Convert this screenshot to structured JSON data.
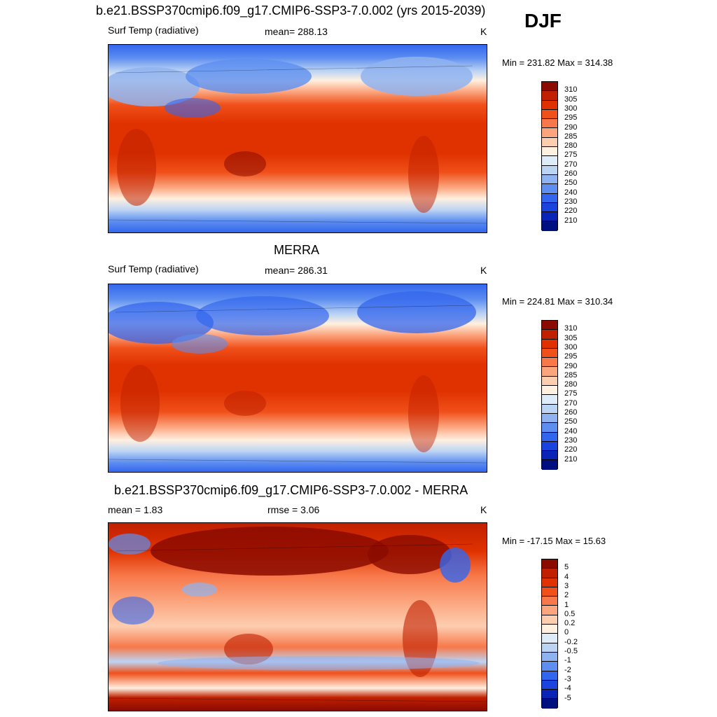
{
  "season": "DJF",
  "units": "K",
  "panels": [
    {
      "title": "b.e21.BSSP370cmip6.f09_g17.CMIP6-SSP3-7.0.002 (yrs 2015-2039)",
      "left_label": "Surf Temp (radiative)",
      "center_label": "mean= 288.13",
      "right_label": "K",
      "minmax": "Min = 231.82 Max = 314.38"
    },
    {
      "title": "MERRA",
      "left_label": "Surf Temp (radiative)",
      "center_label": "mean= 286.31",
      "right_label": "K",
      "minmax": "Min = 224.81 Max = 310.34"
    },
    {
      "title": "b.e21.BSSP370cmip6.f09_g17.CMIP6-SSP3-7.0.002 - MERRA",
      "left_label": "mean =   1.83",
      "center_label": "rmse =   3.06",
      "right_label": "K",
      "minmax": "Min = -17.15 Max =  15.63"
    }
  ],
  "colorbar_abs": {
    "labels": [
      "310",
      "305",
      "300",
      "295",
      "290",
      "285",
      "280",
      "275",
      "270",
      "260",
      "250",
      "240",
      "230",
      "220",
      "210"
    ],
    "colors": [
      "#8b0b00",
      "#c02000",
      "#e03200",
      "#f0501a",
      "#f7784a",
      "#fba57e",
      "#fdcdb0",
      "#fff0e0",
      "#deebf8",
      "#bcd4f4",
      "#8fb3f0",
      "#5d8ef0",
      "#3366ee",
      "#1a44dd",
      "#0a24b8",
      "#000f80"
    ]
  },
  "colorbar_diff": {
    "labels": [
      "5",
      "4",
      "3",
      "2",
      "1",
      "0.5",
      "0.2",
      "0",
      "-0.2",
      "-0.5",
      "-1",
      "-2",
      "-3",
      "-4",
      "-5"
    ],
    "colors": [
      "#8b0b00",
      "#c02000",
      "#e03200",
      "#f0501a",
      "#f7784a",
      "#fba57e",
      "#fdcdb0",
      "#fff0e0",
      "#deebf8",
      "#bcd4f4",
      "#8fb3f0",
      "#5d8ef0",
      "#3366ee",
      "#1a44dd",
      "#0a24b8",
      "#000f80"
    ]
  }
}
